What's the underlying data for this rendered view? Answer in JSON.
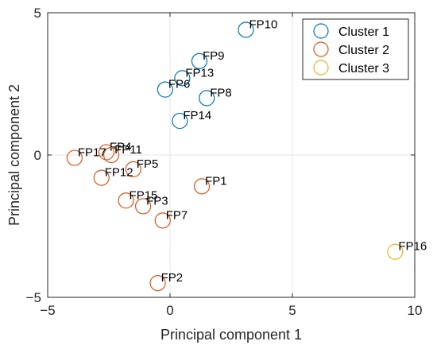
{
  "chart_data": {
    "type": "scatter",
    "title": "",
    "xlabel": "Principal component 1",
    "ylabel": "Principal component 2",
    "xlim": [
      -5,
      10
    ],
    "ylim": [
      -5,
      5
    ],
    "xticks": [
      -5,
      0,
      5,
      10
    ],
    "yticks": [
      -5,
      0,
      5
    ],
    "grid": true,
    "legend_position": "top-right",
    "series": [
      {
        "name": "Cluster 1",
        "color": "#0072BD",
        "points": [
          {
            "label": "FP10",
            "x": 3.1,
            "y": 4.4
          },
          {
            "label": "FP9",
            "x": 1.2,
            "y": 3.3
          },
          {
            "label": "FP13",
            "x": 0.5,
            "y": 2.7
          },
          {
            "label": "FP6",
            "x": -0.2,
            "y": 2.3
          },
          {
            "label": "FP8",
            "x": 1.5,
            "y": 2.0
          },
          {
            "label": "FP14",
            "x": 0.4,
            "y": 1.2
          }
        ]
      },
      {
        "name": "Cluster 2",
        "color": "#D95319",
        "points": [
          {
            "label": "FP4",
            "x": -2.6,
            "y": 0.1
          },
          {
            "label": "FP11",
            "x": -2.4,
            "y": 0.0
          },
          {
            "label": "FP17",
            "x": -3.9,
            "y": -0.1
          },
          {
            "label": "FP5",
            "x": -1.5,
            "y": -0.5
          },
          {
            "label": "FP12",
            "x": -2.8,
            "y": -0.8
          },
          {
            "label": "FP1",
            "x": 1.3,
            "y": -1.1
          },
          {
            "label": "FP15",
            "x": -1.8,
            "y": -1.6
          },
          {
            "label": "FP3",
            "x": -1.1,
            "y": -1.8
          },
          {
            "label": "FP7",
            "x": -0.3,
            "y": -2.3
          },
          {
            "label": "FP2",
            "x": -0.5,
            "y": -4.5
          }
        ]
      },
      {
        "name": "Cluster 3",
        "color": "#EDB120",
        "points": [
          {
            "label": "FP16",
            "x": 9.2,
            "y": -3.4
          }
        ]
      }
    ]
  }
}
